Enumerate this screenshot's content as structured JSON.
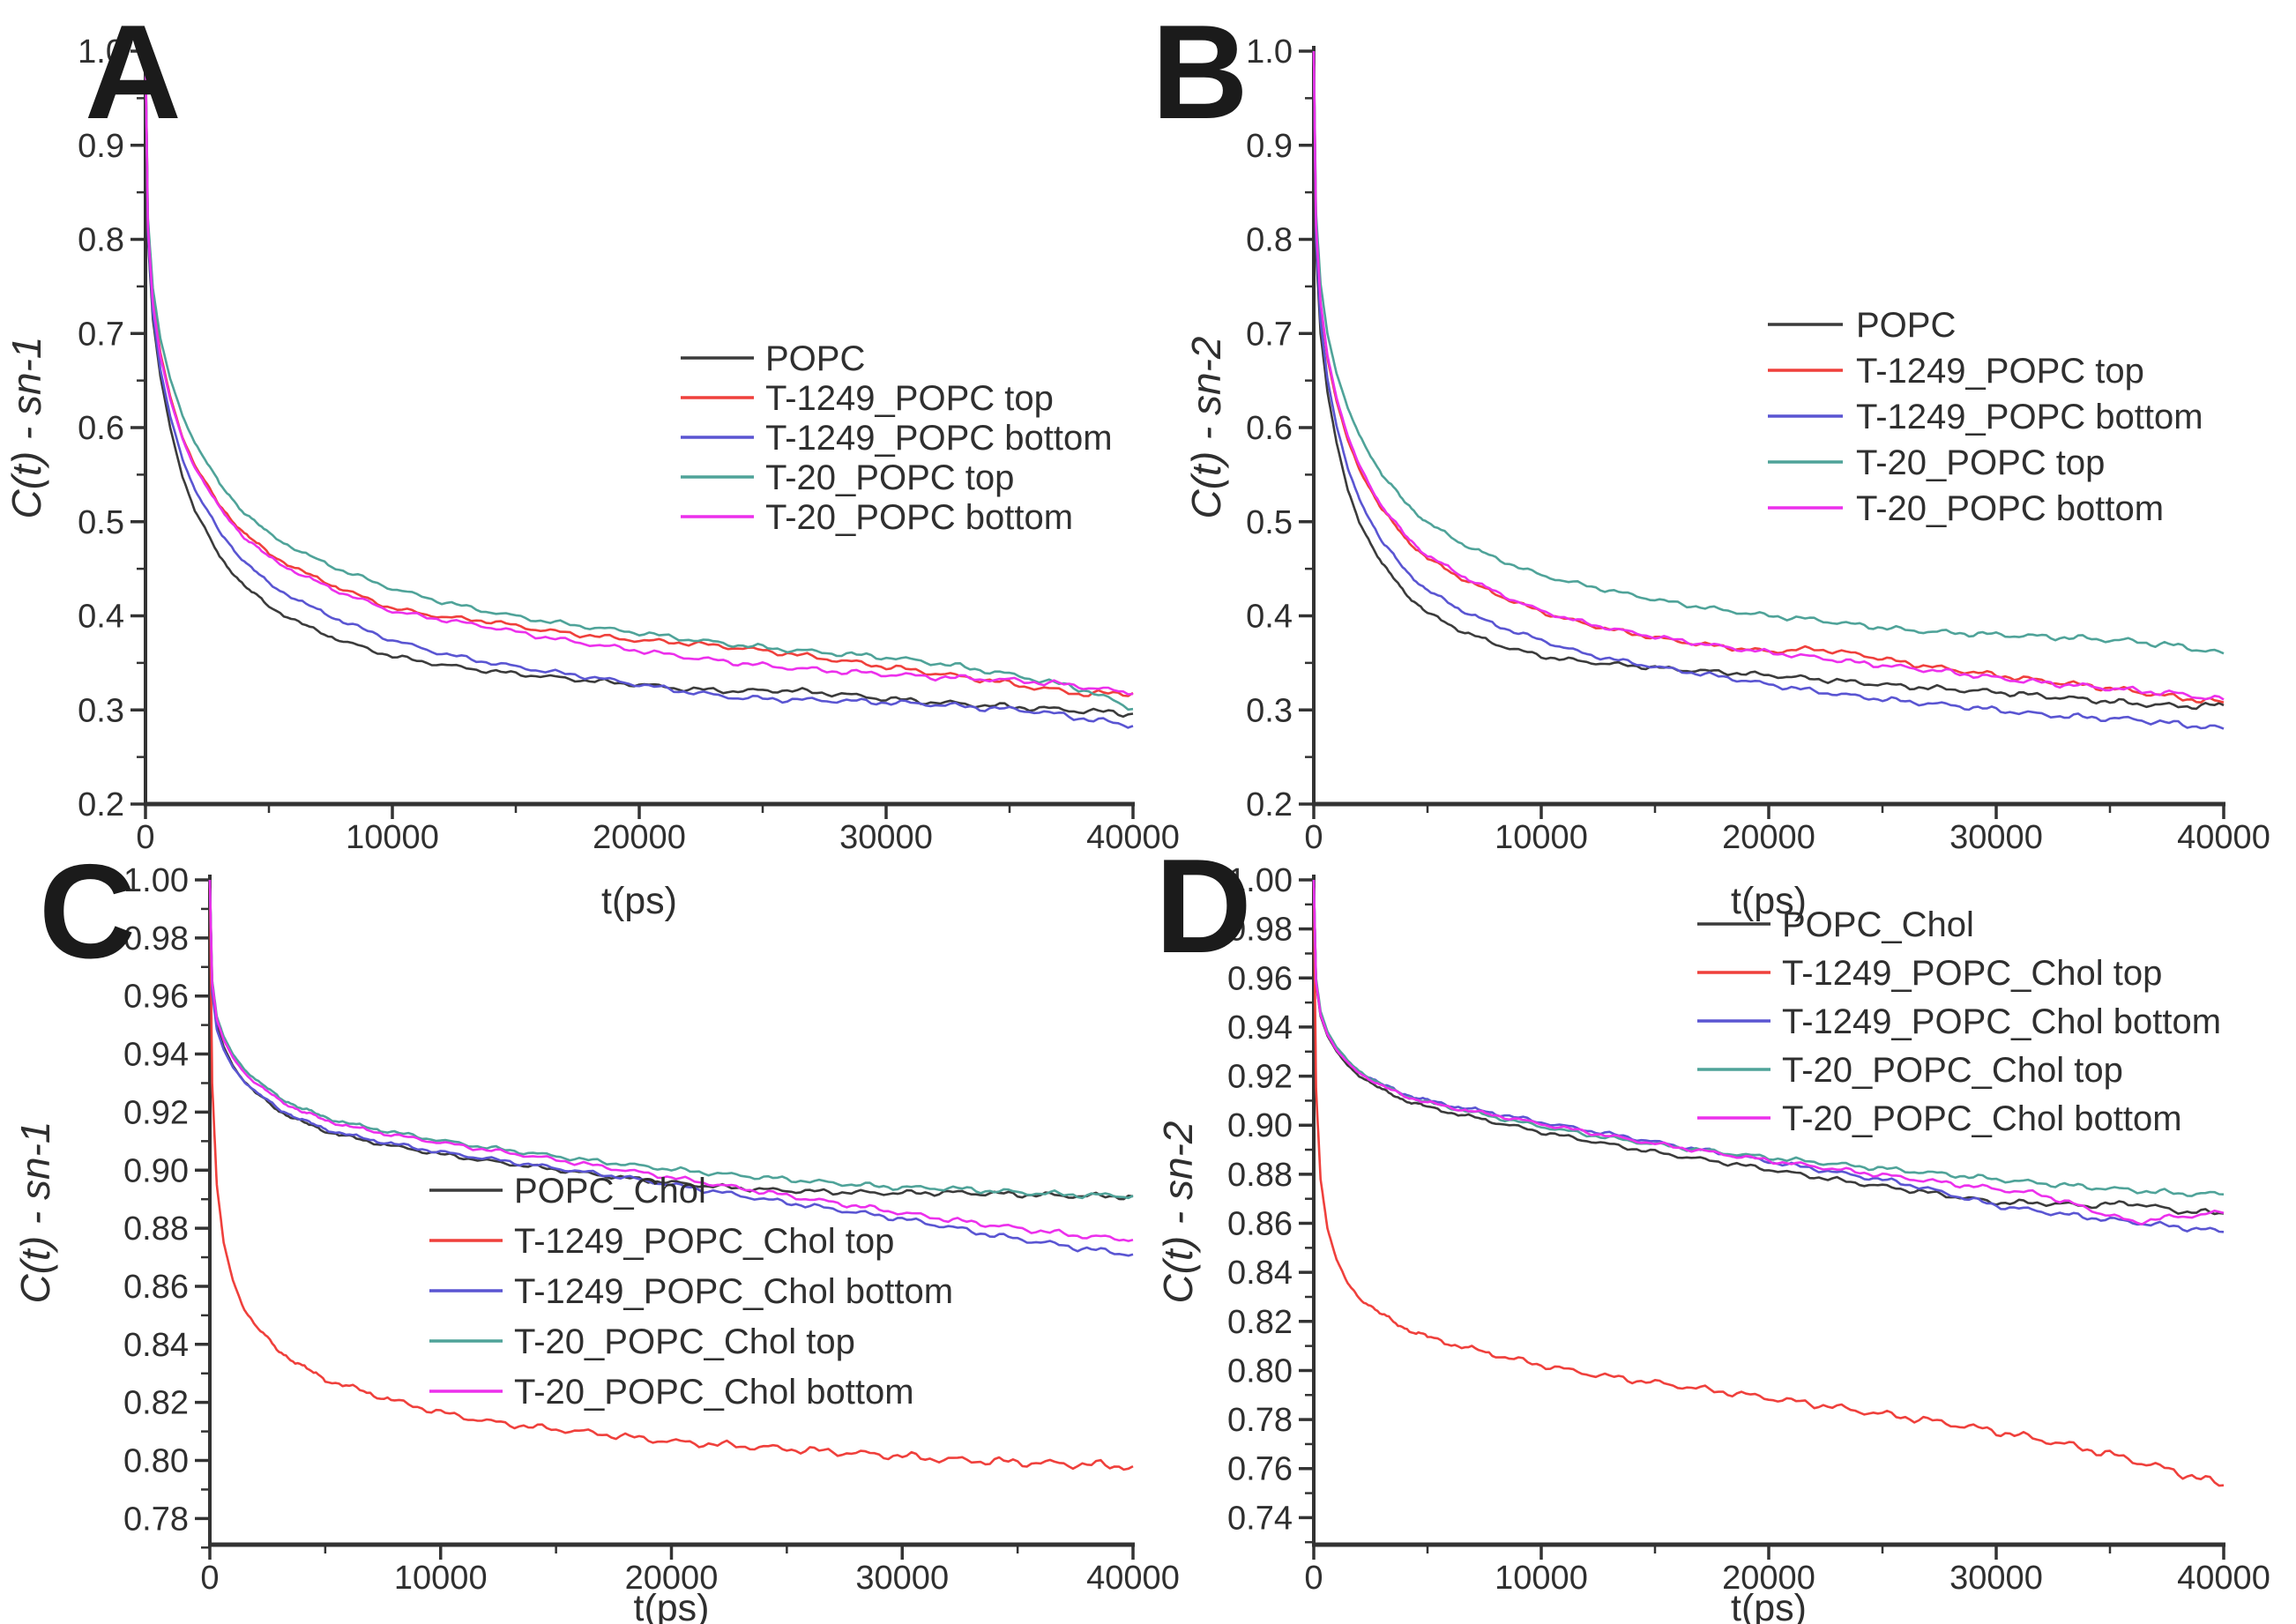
{
  "figure": {
    "background": "#ffffff"
  },
  "chart_data": [
    {
      "panel_label": "A",
      "type": "line",
      "title": "",
      "xlabel": "t(ps)",
      "ylabel": "C(t) - sn-1",
      "xlim": [
        0,
        40000
      ],
      "ylim": [
        0.2,
        1.0
      ],
      "grid": false,
      "legend_position": "center-right-inside",
      "x_ticks": [
        0,
        10000,
        20000,
        30000,
        40000
      ],
      "x_tick_labels": [
        "0",
        "10000",
        "20000",
        "30000",
        "40000"
      ],
      "x_minor_ticks": [
        5000,
        15000,
        25000,
        35000
      ],
      "y_ticks": [
        1.0,
        0.9,
        0.8,
        0.7,
        0.6,
        0.5,
        0.4,
        0.3,
        0.2
      ],
      "y_tick_labels": [
        "1.0",
        "0.9",
        "0.8",
        "0.7",
        "0.6",
        "0.5",
        "0.4",
        "0.3",
        "0.2"
      ],
      "y_minor_ticks": [
        0.95,
        0.85,
        0.75,
        0.65,
        0.55,
        0.45,
        0.35,
        0.25
      ],
      "x": [
        0,
        100,
        300,
        600,
        1000,
        1500,
        2000,
        3000,
        4000,
        5000,
        6500,
        8000,
        10000,
        12000,
        14000,
        16000,
        18000,
        20000,
        22000,
        24000,
        26000,
        28000,
        30000,
        32000,
        34000,
        36000,
        38000,
        40000
      ],
      "series": [
        {
          "name": "POPC",
          "color": "#3b3b3b",
          "values": [
            1.0,
            0.8,
            0.715,
            0.655,
            0.6,
            0.548,
            0.512,
            0.463,
            0.432,
            0.41,
            0.389,
            0.373,
            0.357,
            0.348,
            0.341,
            0.336,
            0.331,
            0.327,
            0.322,
            0.32,
            0.321,
            0.317,
            0.312,
            0.308,
            0.305,
            0.302,
            0.299,
            0.296
          ]
        },
        {
          "name": "T-1249_POPC top",
          "color": "#ef403c",
          "values": [
            1.0,
            0.815,
            0.735,
            0.68,
            0.633,
            0.59,
            0.56,
            0.517,
            0.488,
            0.466,
            0.445,
            0.428,
            0.408,
            0.399,
            0.394,
            0.385,
            0.379,
            0.374,
            0.371,
            0.366,
            0.36,
            0.353,
            0.346,
            0.339,
            0.332,
            0.324,
            0.317,
            0.318
          ]
        },
        {
          "name": "T-1249_POPC bottom",
          "color": "#5a55d2",
          "values": [
            1.0,
            0.805,
            0.722,
            0.662,
            0.612,
            0.567,
            0.534,
            0.489,
            0.458,
            0.434,
            0.412,
            0.394,
            0.374,
            0.36,
            0.35,
            0.342,
            0.335,
            0.327,
            0.319,
            0.313,
            0.311,
            0.31,
            0.308,
            0.306,
            0.302,
            0.299,
            0.291,
            0.283
          ]
        },
        {
          "name": "T-20_POPC top",
          "color": "#4fa399",
          "values": [
            1.0,
            0.822,
            0.748,
            0.695,
            0.652,
            0.613,
            0.584,
            0.54,
            0.51,
            0.487,
            0.465,
            0.448,
            0.429,
            0.415,
            0.404,
            0.395,
            0.388,
            0.382,
            0.375,
            0.369,
            0.364,
            0.36,
            0.356,
            0.35,
            0.342,
            0.333,
            0.322,
            0.301
          ]
        },
        {
          "name": "T-20_POPC bottom",
          "color": "#ec30ec",
          "values": [
            1.0,
            0.812,
            0.732,
            0.676,
            0.63,
            0.588,
            0.558,
            0.514,
            0.484,
            0.462,
            0.441,
            0.424,
            0.405,
            0.396,
            0.388,
            0.378,
            0.37,
            0.363,
            0.356,
            0.35,
            0.345,
            0.341,
            0.338,
            0.335,
            0.333,
            0.33,
            0.325,
            0.317
          ]
        }
      ]
    },
    {
      "panel_label": "B",
      "type": "line",
      "title": "",
      "xlabel": "t(ps)",
      "ylabel": "C(t) - sn-2",
      "xlim": [
        0,
        40000
      ],
      "ylim": [
        0.2,
        1.0
      ],
      "grid": false,
      "legend_position": "upper-right-inside",
      "x_ticks": [
        0,
        10000,
        20000,
        30000,
        40000
      ],
      "x_tick_labels": [
        "0",
        "10000",
        "20000",
        "30000",
        "40000"
      ],
      "x_minor_ticks": [
        5000,
        15000,
        25000,
        35000
      ],
      "y_ticks": [
        1.0,
        0.9,
        0.8,
        0.7,
        0.6,
        0.5,
        0.4,
        0.3,
        0.2
      ],
      "y_tick_labels": [
        "1.0",
        "0.9",
        "0.8",
        "0.7",
        "0.6",
        "0.5",
        "0.4",
        "0.3",
        "0.2"
      ],
      "y_minor_ticks": [
        0.95,
        0.85,
        0.75,
        0.65,
        0.55,
        0.45,
        0.35,
        0.25
      ],
      "x": [
        0,
        100,
        300,
        600,
        1000,
        1500,
        2000,
        3000,
        4000,
        5000,
        6500,
        8000,
        10000,
        12000,
        14000,
        16000,
        18000,
        20000,
        22000,
        24000,
        26000,
        28000,
        30000,
        32000,
        34000,
        36000,
        38000,
        40000
      ],
      "series": [
        {
          "name": "POPC",
          "color": "#3b3b3b",
          "values": [
            1.0,
            0.79,
            0.7,
            0.638,
            0.584,
            0.533,
            0.5,
            0.455,
            0.425,
            0.403,
            0.384,
            0.37,
            0.357,
            0.351,
            0.347,
            0.343,
            0.34,
            0.337,
            0.333,
            0.329,
            0.325,
            0.322,
            0.319,
            0.315,
            0.311,
            0.307,
            0.304,
            0.305
          ]
        },
        {
          "name": "T-1249_POPC top",
          "color": "#ef403c",
          "values": [
            1.0,
            0.813,
            0.73,
            0.674,
            0.628,
            0.586,
            0.556,
            0.513,
            0.483,
            0.461,
            0.44,
            0.423,
            0.404,
            0.391,
            0.381,
            0.373,
            0.367,
            0.362,
            0.365,
            0.359,
            0.35,
            0.343,
            0.337,
            0.331,
            0.326,
            0.32,
            0.313,
            0.308
          ]
        },
        {
          "name": "T-1249_POPC bottom",
          "color": "#5a55d2",
          "values": [
            1.0,
            0.8,
            0.713,
            0.652,
            0.602,
            0.556,
            0.524,
            0.479,
            0.449,
            0.427,
            0.406,
            0.39,
            0.374,
            0.359,
            0.35,
            0.342,
            0.335,
            0.327,
            0.32,
            0.314,
            0.309,
            0.305,
            0.3,
            0.295,
            0.292,
            0.29,
            0.285,
            0.28
          ]
        },
        {
          "name": "T-20_POPC top",
          "color": "#4fa399",
          "values": [
            1.0,
            0.828,
            0.753,
            0.7,
            0.658,
            0.62,
            0.592,
            0.55,
            0.521,
            0.499,
            0.477,
            0.461,
            0.443,
            0.432,
            0.422,
            0.413,
            0.406,
            0.4,
            0.396,
            0.39,
            0.385,
            0.382,
            0.38,
            0.378,
            0.376,
            0.373,
            0.368,
            0.36
          ]
        },
        {
          "name": "T-20_POPC bottom",
          "color": "#ec30ec",
          "values": [
            1.0,
            0.815,
            0.733,
            0.677,
            0.632,
            0.59,
            0.56,
            0.516,
            0.486,
            0.464,
            0.443,
            0.425,
            0.405,
            0.392,
            0.382,
            0.374,
            0.367,
            0.361,
            0.356,
            0.35,
            0.345,
            0.34,
            0.334,
            0.329,
            0.325,
            0.321,
            0.317,
            0.311
          ]
        }
      ]
    },
    {
      "panel_label": "C",
      "type": "line",
      "title": "",
      "xlabel": "t(ps)",
      "ylabel": "C(t) - sn-1",
      "xlim": [
        0,
        40000
      ],
      "ylim": [
        0.771,
        1.0
      ],
      "grid": false,
      "legend_position": "center-left-inside",
      "x_ticks": [
        0,
        10000,
        20000,
        30000,
        40000
      ],
      "x_tick_labels": [
        "0",
        "10000",
        "20000",
        "30000",
        "40000"
      ],
      "x_minor_ticks": [
        5000,
        15000,
        25000,
        35000
      ],
      "y_ticks": [
        1.0,
        0.98,
        0.96,
        0.94,
        0.92,
        0.9,
        0.88,
        0.86,
        0.84,
        0.82,
        0.8,
        0.78
      ],
      "y_tick_labels": [
        "1.00",
        "0.98",
        "0.96",
        "0.94",
        "0.92",
        "0.90",
        "0.88",
        "0.86",
        "0.84",
        "0.82",
        "0.80",
        "0.78"
      ],
      "y_minor_ticks": [
        0.99,
        0.97,
        0.95,
        0.93,
        0.91,
        0.89,
        0.87,
        0.85,
        0.83,
        0.81,
        0.79,
        0.77
      ],
      "x": [
        0,
        100,
        300,
        600,
        1000,
        1500,
        2000,
        3000,
        4000,
        5000,
        6500,
        8000,
        10000,
        12000,
        14000,
        16000,
        18000,
        20000,
        22000,
        24000,
        26000,
        28000,
        30000,
        32000,
        34000,
        36000,
        38000,
        40000
      ],
      "series": [
        {
          "name": "POPC_Chol",
          "color": "#3b3b3b",
          "values": [
            1.0,
            0.963,
            0.95,
            0.9425,
            0.936,
            0.9305,
            0.9265,
            0.9205,
            0.9165,
            0.9135,
            0.9105,
            0.9082,
            0.9055,
            0.9032,
            0.9012,
            0.8992,
            0.8973,
            0.8957,
            0.8943,
            0.8933,
            0.8927,
            0.8923,
            0.8921,
            0.8923,
            0.8919,
            0.8914,
            0.8911,
            0.891
          ]
        },
        {
          "name": "T-1249_POPC_Chol top",
          "color": "#ef403c",
          "values": [
            1.0,
            0.93,
            0.895,
            0.875,
            0.862,
            0.852,
            0.846,
            0.838,
            0.8322,
            0.828,
            0.8242,
            0.8205,
            0.8165,
            0.8135,
            0.8115,
            0.81,
            0.8082,
            0.8065,
            0.8055,
            0.8045,
            0.8035,
            0.8025,
            0.8015,
            0.8003,
            0.7997,
            0.7991,
            0.7986,
            0.798
          ]
        },
        {
          "name": "T-1249_POPC_Chol bottom",
          "color": "#5a55d2",
          "values": [
            1.0,
            0.9615,
            0.9485,
            0.9415,
            0.9355,
            0.9305,
            0.9268,
            0.9212,
            0.9172,
            0.9142,
            0.9112,
            0.909,
            0.9062,
            0.904,
            0.9018,
            0.8996,
            0.8975,
            0.895,
            0.8925,
            0.89,
            0.8877,
            0.8855,
            0.8832,
            0.8805,
            0.8775,
            0.8752,
            0.8728,
            0.871
          ]
        },
        {
          "name": "T-20_POPC_Chol top",
          "color": "#4fa399",
          "values": [
            1.0,
            0.9655,
            0.953,
            0.946,
            0.94,
            0.9348,
            0.931,
            0.9252,
            0.9212,
            0.9182,
            0.9152,
            0.913,
            0.9102,
            0.9078,
            0.9058,
            0.9038,
            0.902,
            0.9003,
            0.8988,
            0.8975,
            0.8962,
            0.895,
            0.894,
            0.8938,
            0.8928,
            0.892,
            0.8914,
            0.8912
          ]
        },
        {
          "name": "T-20_POPC_Chol bottom",
          "color": "#ec30ec",
          "values": [
            1.0,
            0.9645,
            0.952,
            0.9448,
            0.9388,
            0.9336,
            0.9298,
            0.9242,
            0.9202,
            0.9172,
            0.9142,
            0.912,
            0.9095,
            0.907,
            0.9048,
            0.9024,
            0.9,
            0.8975,
            0.895,
            0.8925,
            0.89,
            0.8877,
            0.8853,
            0.883,
            0.881,
            0.879,
            0.8772,
            0.876
          ]
        }
      ]
    },
    {
      "panel_label": "D",
      "type": "line",
      "title": "",
      "xlabel": "t(ps)",
      "ylabel": "C(t) - sn-2",
      "xlim": [
        0,
        40000
      ],
      "ylim": [
        0.729,
        1.0
      ],
      "grid": false,
      "legend_position": "upper-right-inside",
      "x_ticks": [
        0,
        10000,
        20000,
        30000,
        40000
      ],
      "x_tick_labels": [
        "0",
        "10000",
        "20000",
        "30000",
        "40000"
      ],
      "x_minor_ticks": [
        5000,
        15000,
        25000,
        35000
      ],
      "y_ticks": [
        1.0,
        0.98,
        0.96,
        0.94,
        0.92,
        0.9,
        0.88,
        0.86,
        0.84,
        0.82,
        0.8,
        0.78,
        0.76,
        0.74
      ],
      "y_tick_labels": [
        "1.00",
        "0.98",
        "0.96",
        "0.94",
        "0.92",
        "0.90",
        "0.88",
        "0.86",
        "0.84",
        "0.82",
        "0.80",
        "0.78",
        "0.76",
        "0.74"
      ],
      "y_minor_ticks": [
        0.99,
        0.97,
        0.95,
        0.93,
        0.91,
        0.89,
        0.87,
        0.85,
        0.83,
        0.81,
        0.79,
        0.77,
        0.75,
        0.73
      ],
      "x": [
        0,
        100,
        300,
        600,
        1000,
        1500,
        2000,
        3000,
        4000,
        5000,
        6500,
        8000,
        10000,
        12000,
        14000,
        16000,
        18000,
        20000,
        22000,
        24000,
        26000,
        28000,
        30000,
        32000,
        34000,
        36000,
        38000,
        40000
      ],
      "series": [
        {
          "name": "POPC_Chol",
          "color": "#3b3b3b",
          "values": [
            1.0,
            0.958,
            0.9445,
            0.9365,
            0.93,
            0.9243,
            0.9203,
            0.9143,
            0.9103,
            0.9073,
            0.9042,
            0.9012,
            0.8972,
            0.8938,
            0.8905,
            0.8875,
            0.8848,
            0.882,
            0.879,
            0.8763,
            0.8738,
            0.8712,
            0.8685,
            0.8683,
            0.8672,
            0.8683,
            0.865,
            0.864
          ]
        },
        {
          "name": "T-1249_POPC_Chol top",
          "color": "#ef403c",
          "values": [
            1.0,
            0.915,
            0.878,
            0.858,
            0.845,
            0.8355,
            0.8298,
            0.8225,
            0.8175,
            0.8135,
            0.8098,
            0.8063,
            0.8022,
            0.7988,
            0.7962,
            0.7938,
            0.7913,
            0.7888,
            0.7863,
            0.7835,
            0.781,
            0.7783,
            0.7752,
            0.7718,
            0.768,
            0.7635,
            0.7585,
            0.7532
          ]
        },
        {
          "name": "T-1249_POPC_Chol bottom",
          "color": "#5a55d2",
          "values": [
            1.0,
            0.959,
            0.9455,
            0.9375,
            0.9312,
            0.9258,
            0.922,
            0.9165,
            0.9128,
            0.91,
            0.9072,
            0.9048,
            0.9012,
            0.898,
            0.8948,
            0.8915,
            0.8885,
            0.8852,
            0.8822,
            0.8792,
            0.8762,
            0.8718,
            0.8672,
            0.8648,
            0.8625,
            0.8605,
            0.8585,
            0.8565
          ]
        },
        {
          "name": "T-20_POPC_Chol top",
          "color": "#4fa399",
          "values": [
            1.0,
            0.96,
            0.9465,
            0.9382,
            0.9318,
            0.9262,
            0.9222,
            0.9162,
            0.9122,
            0.9092,
            0.9062,
            0.9032,
            0.8995,
            0.8962,
            0.8935,
            0.891,
            0.8888,
            0.8868,
            0.885,
            0.8832,
            0.8815,
            0.8798,
            0.878,
            0.8763,
            0.8748,
            0.8735,
            0.8722,
            0.8718
          ]
        },
        {
          "name": "T-20_POPC_Chol bottom",
          "color": "#ec30ec",
          "values": [
            1.0,
            0.9585,
            0.945,
            0.937,
            0.9306,
            0.9252,
            0.9214,
            0.9158,
            0.912,
            0.9092,
            0.9064,
            0.904,
            0.9005,
            0.8972,
            0.894,
            0.891,
            0.8882,
            0.8856,
            0.8832,
            0.8808,
            0.8785,
            0.8762,
            0.874,
            0.8718,
            0.866,
            0.8605,
            0.8628,
            0.8642
          ]
        }
      ]
    }
  ]
}
